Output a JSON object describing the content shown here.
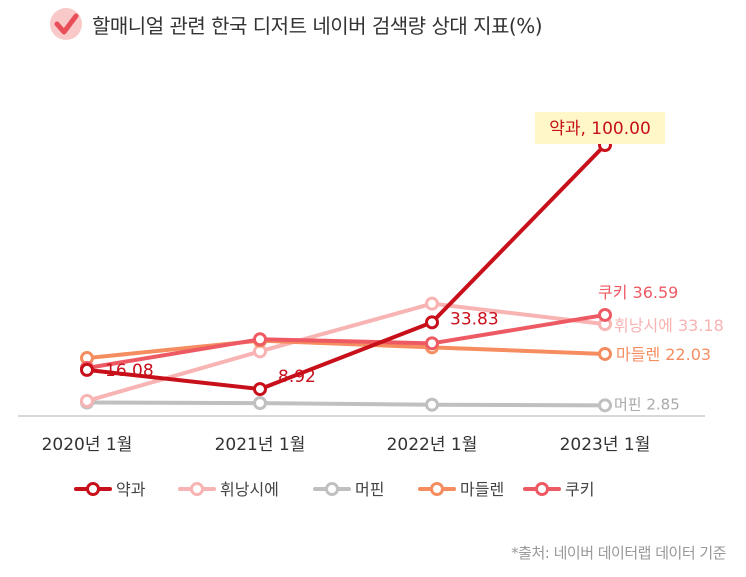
{
  "title": "할매니얼 관련 한국 디저트 네이버 검색량 상대 지표(%)",
  "source": "*출처: 네이버 데이터랩 데이터 기준",
  "chart_data": {
    "type": "line",
    "categories": [
      "2020년 1월",
      "2021년 1월",
      "2022년 1월",
      "2023년 1월"
    ],
    "ylim": [
      0,
      100
    ],
    "grid": false,
    "legend_position": "bottom",
    "series": [
      {
        "name": "약과",
        "values": [
          16.08,
          8.92,
          33.83,
          100.0
        ],
        "color": "#c8101b"
      },
      {
        "name": "휘낭시에",
        "values": [
          4.5,
          23.0,
          40.8,
          33.18
        ],
        "color": "#f8b3b3"
      },
      {
        "name": "머핀",
        "values": [
          3.9,
          3.7,
          3.1,
          2.85
        ],
        "color": "#c0c0c0"
      },
      {
        "name": "마들렌",
        "values": [
          20.5,
          27.0,
          24.5,
          22.03
        ],
        "color": "#f58d60"
      },
      {
        "name": "쿠키",
        "values": [
          16.8,
          27.5,
          26.0,
          36.59
        ],
        "color": "#ee5a64"
      }
    ],
    "data_labels": [
      {
        "series": 0,
        "point": 0,
        "text": "16.08"
      },
      {
        "series": 0,
        "point": 1,
        "text": "8.92"
      },
      {
        "series": 0,
        "point": 2,
        "text": "33.83"
      },
      {
        "series": 0,
        "point": 3,
        "text": "약과, 100.00"
      },
      {
        "series": 4,
        "point": 3,
        "text": "쿠키 36.59"
      },
      {
        "series": 1,
        "point": 3,
        "text": "휘낭시에 33.18"
      },
      {
        "series": 3,
        "point": 3,
        "text": "마들렌 22.03"
      },
      {
        "series": 2,
        "point": 3,
        "text": "머핀 2.85"
      }
    ]
  }
}
